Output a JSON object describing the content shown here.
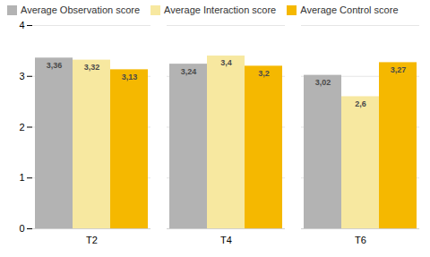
{
  "chart_data": {
    "type": "bar",
    "categories": [
      "T2",
      "T4",
      "T6"
    ],
    "series": [
      {
        "name": "Average Observation score",
        "color": "#b3b3b3",
        "values": [
          3.36,
          3.24,
          3.02
        ],
        "value_labels": [
          "3,36",
          "3,24",
          "3,02"
        ]
      },
      {
        "name": "Average Interaction score",
        "color": "#f7e8a0",
        "values": [
          3.32,
          3.4,
          2.6
        ],
        "value_labels": [
          "3,32",
          "3,4",
          "2,6"
        ]
      },
      {
        "name": "Average Control score",
        "color": "#f5b800",
        "values": [
          3.13,
          3.2,
          3.27
        ],
        "value_labels": [
          "3,13",
          "3,2",
          "3,27"
        ]
      }
    ],
    "ylim": [
      0,
      4
    ],
    "yticks": [
      0,
      1,
      2,
      3,
      4
    ],
    "grid": true,
    "legend": "upper left",
    "data_labels": true
  }
}
